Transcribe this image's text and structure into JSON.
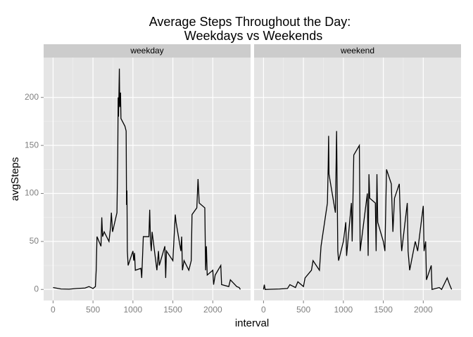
{
  "chart_data": {
    "type": "line",
    "title": [
      "Average Steps Throughout the Day:",
      "Weekdays vs Weekends"
    ],
    "x_label": "interval",
    "y_label": "avgSteps",
    "xlim": [
      -118,
      2473
    ],
    "ylim": [
      -11.5,
      241.5
    ],
    "xticks": [
      0,
      500,
      1000,
      1500,
      2000
    ],
    "yticks": [
      0,
      50,
      100,
      150,
      200
    ],
    "grid": true,
    "color": "#000000",
    "panels": [
      {
        "name": "weekday",
        "x": [
          0,
          100,
          200,
          300,
          400,
          450,
          500,
          530,
          540,
          550,
          600,
          610,
          620,
          640,
          700,
          720,
          730,
          745,
          800,
          810,
          815,
          820,
          830,
          835,
          845,
          850,
          900,
          915,
          920,
          925,
          930,
          940,
          1000,
          1010,
          1020,
          1030,
          1100,
          1110,
          1130,
          1200,
          1210,
          1220,
          1230,
          1240,
          1300,
          1320,
          1330,
          1400,
          1410,
          1420,
          1500,
          1530,
          1540,
          1600,
          1610,
          1620,
          1640,
          1700,
          1730,
          1740,
          1800,
          1815,
          1830,
          1900,
          1910,
          1920,
          1930,
          2000,
          2010,
          2030,
          2100,
          2110,
          2200,
          2220,
          2300,
          2330,
          2345
        ],
        "values": [
          2,
          0.5,
          0.3,
          1,
          1.5,
          3,
          1,
          3,
          20,
          55,
          45,
          75,
          55,
          60,
          50,
          65,
          80,
          60,
          80,
          140,
          200,
          180,
          230,
          190,
          205,
          178,
          170,
          165,
          88,
          103,
          40,
          25,
          40,
          30,
          38,
          20,
          22,
          12,
          55,
          55,
          83,
          50,
          40,
          60,
          20,
          40,
          25,
          45,
          12,
          40,
          30,
          78,
          70,
          40,
          55,
          20,
          30,
          20,
          30,
          78,
          85,
          115,
          90,
          85,
          20,
          45,
          15,
          20,
          5,
          15,
          25,
          5,
          3,
          10,
          3,
          2,
          0
        ]
      },
      {
        "name": "weekend",
        "x": [
          0,
          10,
          20,
          200,
          300,
          330,
          400,
          430,
          500,
          520,
          600,
          620,
          700,
          720,
          800,
          810,
          815,
          820,
          900,
          915,
          930,
          940,
          1000,
          1030,
          1040,
          1100,
          1110,
          1130,
          1200,
          1210,
          1300,
          1310,
          1320,
          1330,
          1400,
          1410,
          1420,
          1430,
          1500,
          1520,
          1540,
          1600,
          1620,
          1640,
          1700,
          1720,
          1730,
          1800,
          1810,
          1830,
          1900,
          1930,
          2000,
          2010,
          2030,
          2040,
          2100,
          2110,
          2200,
          2230,
          2300,
          2330,
          2355
        ],
        "values": [
          0,
          5,
          0,
          0.5,
          1,
          5,
          2,
          8,
          3,
          12,
          20,
          30,
          20,
          45,
          90,
          130,
          160,
          120,
          80,
          165,
          40,
          30,
          50,
          70,
          35,
          90,
          50,
          140,
          150,
          40,
          100,
          35,
          120,
          95,
          90,
          40,
          120,
          70,
          50,
          40,
          125,
          110,
          60,
          95,
          110,
          55,
          40,
          90,
          40,
          20,
          50,
          40,
          87,
          40,
          50,
          10,
          25,
          0,
          2,
          0,
          12,
          5,
          0
        ]
      }
    ]
  }
}
